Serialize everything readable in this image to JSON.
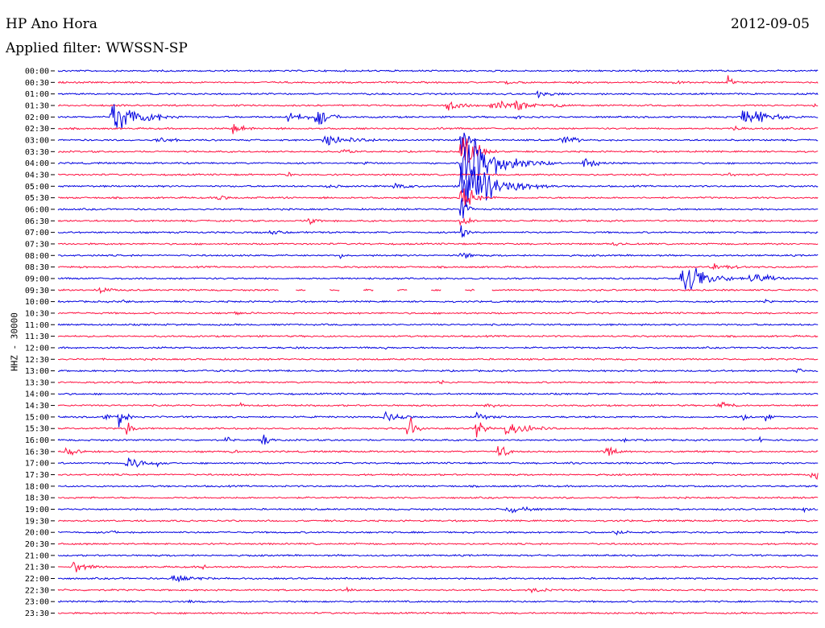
{
  "header": {
    "station": "HP Ano Hora",
    "date": "2012-09-05",
    "filter": "Applied filter: WWSSN-SP",
    "channel_label": "HHZ - 30000"
  },
  "colors": {
    "blue": "#0000e0",
    "red": "#ff1040"
  },
  "chart_data": {
    "type": "helicorder",
    "title": "HP Ano Hora",
    "date": "2012-09-05",
    "channel": "HHZ - 30000",
    "row_interval_minutes": 30,
    "row_labels": [
      "00:00",
      "00:30",
      "01:00",
      "01:30",
      "02:00",
      "02:30",
      "03:00",
      "03:30",
      "04:00",
      "04:30",
      "05:00",
      "05:30",
      "06:00",
      "06:30",
      "07:00",
      "07:30",
      "08:00",
      "08:30",
      "09:00",
      "09:30",
      "10:00",
      "10:30",
      "11:00",
      "11:30",
      "12:00",
      "12:30",
      "13:00",
      "13:30",
      "14:00",
      "14:30",
      "15:00",
      "15:30",
      "16:00",
      "16:30",
      "17:00",
      "17:30",
      "18:00",
      "18:30",
      "19:00",
      "19:30",
      "20:00",
      "20:30",
      "21:00",
      "21:30",
      "22:00",
      "22:30",
      "23:00",
      "23:30"
    ],
    "row_colors": [
      "blue",
      "red"
    ],
    "events": [
      {
        "row": 1,
        "t": 0.59,
        "amp": 4,
        "dur": 0.03
      },
      {
        "row": 1,
        "t": 0.81,
        "amp": 6,
        "dur": 0.01
      },
      {
        "row": 1,
        "t": 0.88,
        "amp": 12,
        "dur": 0.01
      },
      {
        "row": 2,
        "t": 0.63,
        "amp": 5,
        "dur": 0.04
      },
      {
        "row": 3,
        "t": 0.51,
        "amp": 9,
        "dur": 0.03
      },
      {
        "row": 3,
        "t": 0.57,
        "amp": 10,
        "dur": 0.03
      },
      {
        "row": 3,
        "t": 0.6,
        "amp": 9,
        "dur": 0.03
      },
      {
        "row": 3,
        "t": 0.65,
        "amp": 5,
        "dur": 0.02
      },
      {
        "row": 3,
        "t": 0.99,
        "amp": 4,
        "dur": 0.01
      },
      {
        "row": 4,
        "t": 0.07,
        "amp": 28,
        "dur": 0.04
      },
      {
        "row": 4,
        "t": 0.1,
        "amp": 12,
        "dur": 0.03
      },
      {
        "row": 4,
        "t": 0.13,
        "amp": 6,
        "dur": 0.02
      },
      {
        "row": 4,
        "t": 0.3,
        "amp": 10,
        "dur": 0.03
      },
      {
        "row": 4,
        "t": 0.34,
        "amp": 14,
        "dur": 0.02
      },
      {
        "row": 4,
        "t": 0.6,
        "amp": 5,
        "dur": 0.02
      },
      {
        "row": 4,
        "t": 0.9,
        "amp": 14,
        "dur": 0.04
      },
      {
        "row": 4,
        "t": 0.92,
        "amp": 10,
        "dur": 0.02
      },
      {
        "row": 5,
        "t": 0.23,
        "amp": 8,
        "dur": 0.02
      },
      {
        "row": 5,
        "t": 0.5,
        "amp": 4,
        "dur": 0.01
      },
      {
        "row": 5,
        "t": 0.89,
        "amp": 5,
        "dur": 0.02
      },
      {
        "row": 6,
        "t": 0.13,
        "amp": 9,
        "dur": 0.02
      },
      {
        "row": 6,
        "t": 0.35,
        "amp": 8,
        "dur": 0.06
      },
      {
        "row": 6,
        "t": 0.53,
        "amp": 30,
        "dur": 0.01
      },
      {
        "row": 6,
        "t": 0.66,
        "amp": 8,
        "dur": 0.03
      },
      {
        "row": 7,
        "t": 0.37,
        "amp": 6,
        "dur": 0.02
      },
      {
        "row": 7,
        "t": 0.53,
        "amp": 40,
        "dur": 0.02
      },
      {
        "row": 8,
        "t": 0.53,
        "amp": 50,
        "dur": 0.05
      },
      {
        "row": 8,
        "t": 0.69,
        "amp": 10,
        "dur": 0.02
      },
      {
        "row": 8,
        "t": 0.4,
        "amp": 3,
        "dur": 0.03
      },
      {
        "row": 9,
        "t": 0.3,
        "amp": 4,
        "dur": 0.02
      },
      {
        "row": 9,
        "t": 0.88,
        "amp": 4,
        "dur": 0.02
      },
      {
        "row": 10,
        "t": 0.53,
        "amp": 45,
        "dur": 0.05
      },
      {
        "row": 10,
        "t": 0.44,
        "amp": 6,
        "dur": 0.03
      },
      {
        "row": 10,
        "t": 0.35,
        "amp": 4,
        "dur": 0.03
      },
      {
        "row": 11,
        "t": 0.21,
        "amp": 5,
        "dur": 0.02
      },
      {
        "row": 11,
        "t": 0.53,
        "amp": 25,
        "dur": 0.02
      },
      {
        "row": 12,
        "t": 0.53,
        "amp": 20,
        "dur": 0.01
      },
      {
        "row": 13,
        "t": 0.33,
        "amp": 6,
        "dur": 0.02
      },
      {
        "row": 13,
        "t": 0.53,
        "amp": 15,
        "dur": 0.01
      },
      {
        "row": 14,
        "t": 0.28,
        "amp": 4,
        "dur": 0.03
      },
      {
        "row": 14,
        "t": 0.53,
        "amp": 12,
        "dur": 0.01
      },
      {
        "row": 15,
        "t": 0.73,
        "amp": 5,
        "dur": 0.02
      },
      {
        "row": 16,
        "t": 0.53,
        "amp": 14,
        "dur": 0.01
      },
      {
        "row": 16,
        "t": 0.37,
        "amp": 5,
        "dur": 0.01
      },
      {
        "row": 17,
        "t": 0.03,
        "amp": 3,
        "dur": 0.01
      },
      {
        "row": 18,
        "t": 0.82,
        "amp": 24,
        "dur": 0.04
      },
      {
        "row": 18,
        "t": 0.84,
        "amp": 10,
        "dur": 0.03
      },
      {
        "row": 18,
        "t": 0.91,
        "amp": 12,
        "dur": 0.03
      },
      {
        "row": 17,
        "t": 0.86,
        "amp": 8,
        "dur": 0.03
      },
      {
        "row": 19,
        "t": 0.05,
        "amp": 8,
        "dur": 0.02
      },
      {
        "row": 20,
        "t": 0.08,
        "amp": 5,
        "dur": 0.02
      },
      {
        "row": 20,
        "t": 0.93,
        "amp": 6,
        "dur": 0.01
      },
      {
        "row": 21,
        "t": 0.23,
        "amp": 4,
        "dur": 0.03
      },
      {
        "row": 24,
        "t": 0.31,
        "amp": 4,
        "dur": 0.02
      },
      {
        "row": 24,
        "t": 0.43,
        "amp": 3,
        "dur": 0.01
      },
      {
        "row": 26,
        "t": 0.19,
        "amp": 3,
        "dur": 0.01
      },
      {
        "row": 26,
        "t": 0.97,
        "amp": 4,
        "dur": 0.02
      },
      {
        "row": 27,
        "t": 0.5,
        "amp": 4,
        "dur": 0.02
      },
      {
        "row": 29,
        "t": 0.24,
        "amp": 5,
        "dur": 0.01
      },
      {
        "row": 29,
        "t": 0.56,
        "amp": 5,
        "dur": 0.02
      },
      {
        "row": 29,
        "t": 0.87,
        "amp": 5,
        "dur": 0.03
      },
      {
        "row": 30,
        "t": 0.43,
        "amp": 8,
        "dur": 0.03
      },
      {
        "row": 30,
        "t": 0.55,
        "amp": 6,
        "dur": 0.03
      },
      {
        "row": 30,
        "t": 0.06,
        "amp": 10,
        "dur": 0.01
      },
      {
        "row": 30,
        "t": 0.08,
        "amp": 18,
        "dur": 0.01
      },
      {
        "row": 30,
        "t": 0.9,
        "amp": 8,
        "dur": 0.01
      },
      {
        "row": 30,
        "t": 0.93,
        "amp": 8,
        "dur": 0.01
      },
      {
        "row": 31,
        "t": 0.61,
        "amp": 7,
        "dur": 0.04
      },
      {
        "row": 31,
        "t": 0.09,
        "amp": 15,
        "dur": 0.01
      },
      {
        "row": 31,
        "t": 0.46,
        "amp": 25,
        "dur": 0.01
      },
      {
        "row": 31,
        "t": 0.55,
        "amp": 20,
        "dur": 0.01
      },
      {
        "row": 31,
        "t": 0.59,
        "amp": 30,
        "dur": 0.01
      },
      {
        "row": 32,
        "t": 0.22,
        "amp": 8,
        "dur": 0.01
      },
      {
        "row": 32,
        "t": 0.27,
        "amp": 10,
        "dur": 0.01
      },
      {
        "row": 32,
        "t": 0.74,
        "amp": 5,
        "dur": 0.01
      },
      {
        "row": 32,
        "t": 0.92,
        "amp": 6,
        "dur": 0.01
      },
      {
        "row": 33,
        "t": 0.01,
        "amp": 8,
        "dur": 0.02
      },
      {
        "row": 33,
        "t": 0.72,
        "amp": 10,
        "dur": 0.02
      },
      {
        "row": 33,
        "t": 0.58,
        "amp": 18,
        "dur": 0.01
      },
      {
        "row": 33,
        "t": 0.23,
        "amp": 6,
        "dur": 0.01
      },
      {
        "row": 34,
        "t": 0.09,
        "amp": 10,
        "dur": 0.03
      },
      {
        "row": 34,
        "t": 0.13,
        "amp": 5,
        "dur": 0.02
      },
      {
        "row": 34,
        "t": 0.67,
        "amp": 3,
        "dur": 0.02
      },
      {
        "row": 35,
        "t": 0.99,
        "amp": 8,
        "dur": 0.03
      },
      {
        "row": 38,
        "t": 0.59,
        "amp": 6,
        "dur": 0.04
      },
      {
        "row": 38,
        "t": 0.98,
        "amp": 6,
        "dur": 0.01
      },
      {
        "row": 40,
        "t": 0.07,
        "amp": 4,
        "dur": 0.01
      },
      {
        "row": 40,
        "t": 0.73,
        "amp": 4,
        "dur": 0.03
      },
      {
        "row": 43,
        "t": 0.02,
        "amp": 12,
        "dur": 0.02
      },
      {
        "row": 43,
        "t": 0.19,
        "amp": 4,
        "dur": 0.01
      },
      {
        "row": 44,
        "t": 0.15,
        "amp": 6,
        "dur": 0.05
      },
      {
        "row": 45,
        "t": 0.38,
        "amp": 4,
        "dur": 0.01
      },
      {
        "row": 45,
        "t": 0.62,
        "amp": 4,
        "dur": 0.04
      },
      {
        "row": 46,
        "t": 0.17,
        "amp": 4,
        "dur": 0.01
      }
    ],
    "gap": {
      "row": 19,
      "t_start": 0.29,
      "t_end": 0.57
    }
  }
}
